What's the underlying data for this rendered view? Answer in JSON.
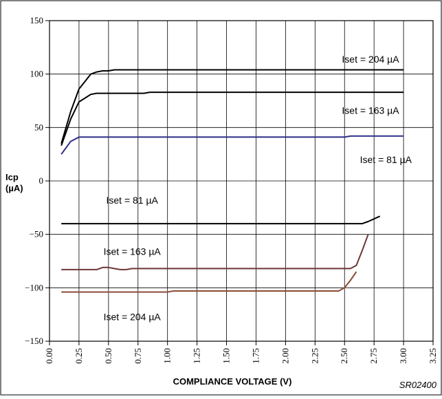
{
  "chart_data": {
    "type": "line",
    "title": "",
    "xlabel": "COMPLIANCE VOLTAGE (V)",
    "ylabel_line1": "Icp",
    "ylabel_line2": "(µA)",
    "xlim": [
      0,
      3.25
    ],
    "ylim": [
      -150,
      150
    ],
    "xticks": [
      0,
      0.25,
      0.5,
      0.75,
      1.0,
      1.25,
      1.5,
      1.75,
      2.0,
      2.25,
      2.5,
      2.75,
      3.0,
      3.25
    ],
    "xtick_labels": [
      "0.00",
      "0.25",
      "0.50",
      "0.75",
      "1.00",
      "1.25",
      "1.50",
      "1.75",
      "2.00",
      "2.25",
      "2.50",
      "2.75",
      "3.00",
      "3.25"
    ],
    "yticks": [
      150,
      100,
      50,
      0,
      -50,
      -100,
      -150
    ],
    "ytick_labels": [
      "150",
      "100",
      "50",
      "0",
      "−50",
      "−100",
      "−150"
    ],
    "grid": true,
    "code_label": "SR02400",
    "series": [
      {
        "name": "Iset = 204 µA",
        "color": "#000000",
        "x": [
          0.1,
          0.18,
          0.25,
          0.35,
          0.4,
          0.45,
          0.5,
          0.55,
          3.0
        ],
        "y": [
          35,
          65,
          86,
          100,
          102,
          103,
          103,
          104,
          104
        ]
      },
      {
        "name": "Iset = 163 µA",
        "color": "#000000",
        "x": [
          0.1,
          0.18,
          0.25,
          0.35,
          0.4,
          0.8,
          0.85,
          3.0
        ],
        "y": [
          33,
          58,
          74,
          81,
          82,
          82,
          83,
          83
        ]
      },
      {
        "name": "Iset = 81 µA",
        "color": "#2e2e8a",
        "x": [
          0.1,
          0.18,
          0.25,
          2.5,
          2.55,
          3.0
        ],
        "y": [
          25,
          37,
          41,
          41,
          42,
          42
        ]
      },
      {
        "name": "Iset = 81 µA",
        "color": "#000000",
        "x": [
          0.1,
          2.65,
          2.7,
          2.8
        ],
        "y": [
          -40,
          -40,
          -38,
          -33
        ]
      },
      {
        "name": "Iset = 163 µA",
        "color": "#6e3535",
        "x": [
          0.1,
          0.4,
          0.45,
          0.5,
          0.55,
          0.6,
          0.65,
          0.7,
          2.55,
          2.6,
          2.65,
          2.7
        ],
        "y": [
          -83,
          -83,
          -81,
          -81,
          -82,
          -83,
          -83,
          -82,
          -82,
          -79,
          -65,
          -50
        ]
      },
      {
        "name": "Iset = 204 µA",
        "color": "#8b4a35",
        "x": [
          0.1,
          1.0,
          1.05,
          2.45,
          2.5,
          2.55,
          2.6
        ],
        "y": [
          -104,
          -104,
          -103,
          -103,
          -100,
          -93,
          -85
        ]
      }
    ],
    "annotations": [
      {
        "text": "Iset = 204 µA",
        "x": 2.72,
        "y": 114
      },
      {
        "text": "Iset = 163 µA",
        "x": 2.72,
        "y": 66
      },
      {
        "text": "Iset = 81 µA",
        "x": 2.85,
        "y": 20
      },
      {
        "text": "Iset = 81 µA",
        "x": 0.7,
        "y": -18
      },
      {
        "text": "Iset = 163 µA",
        "x": 0.7,
        "y": -66
      },
      {
        "text": "Iset = 204 µA",
        "x": 0.7,
        "y": -127
      }
    ]
  }
}
